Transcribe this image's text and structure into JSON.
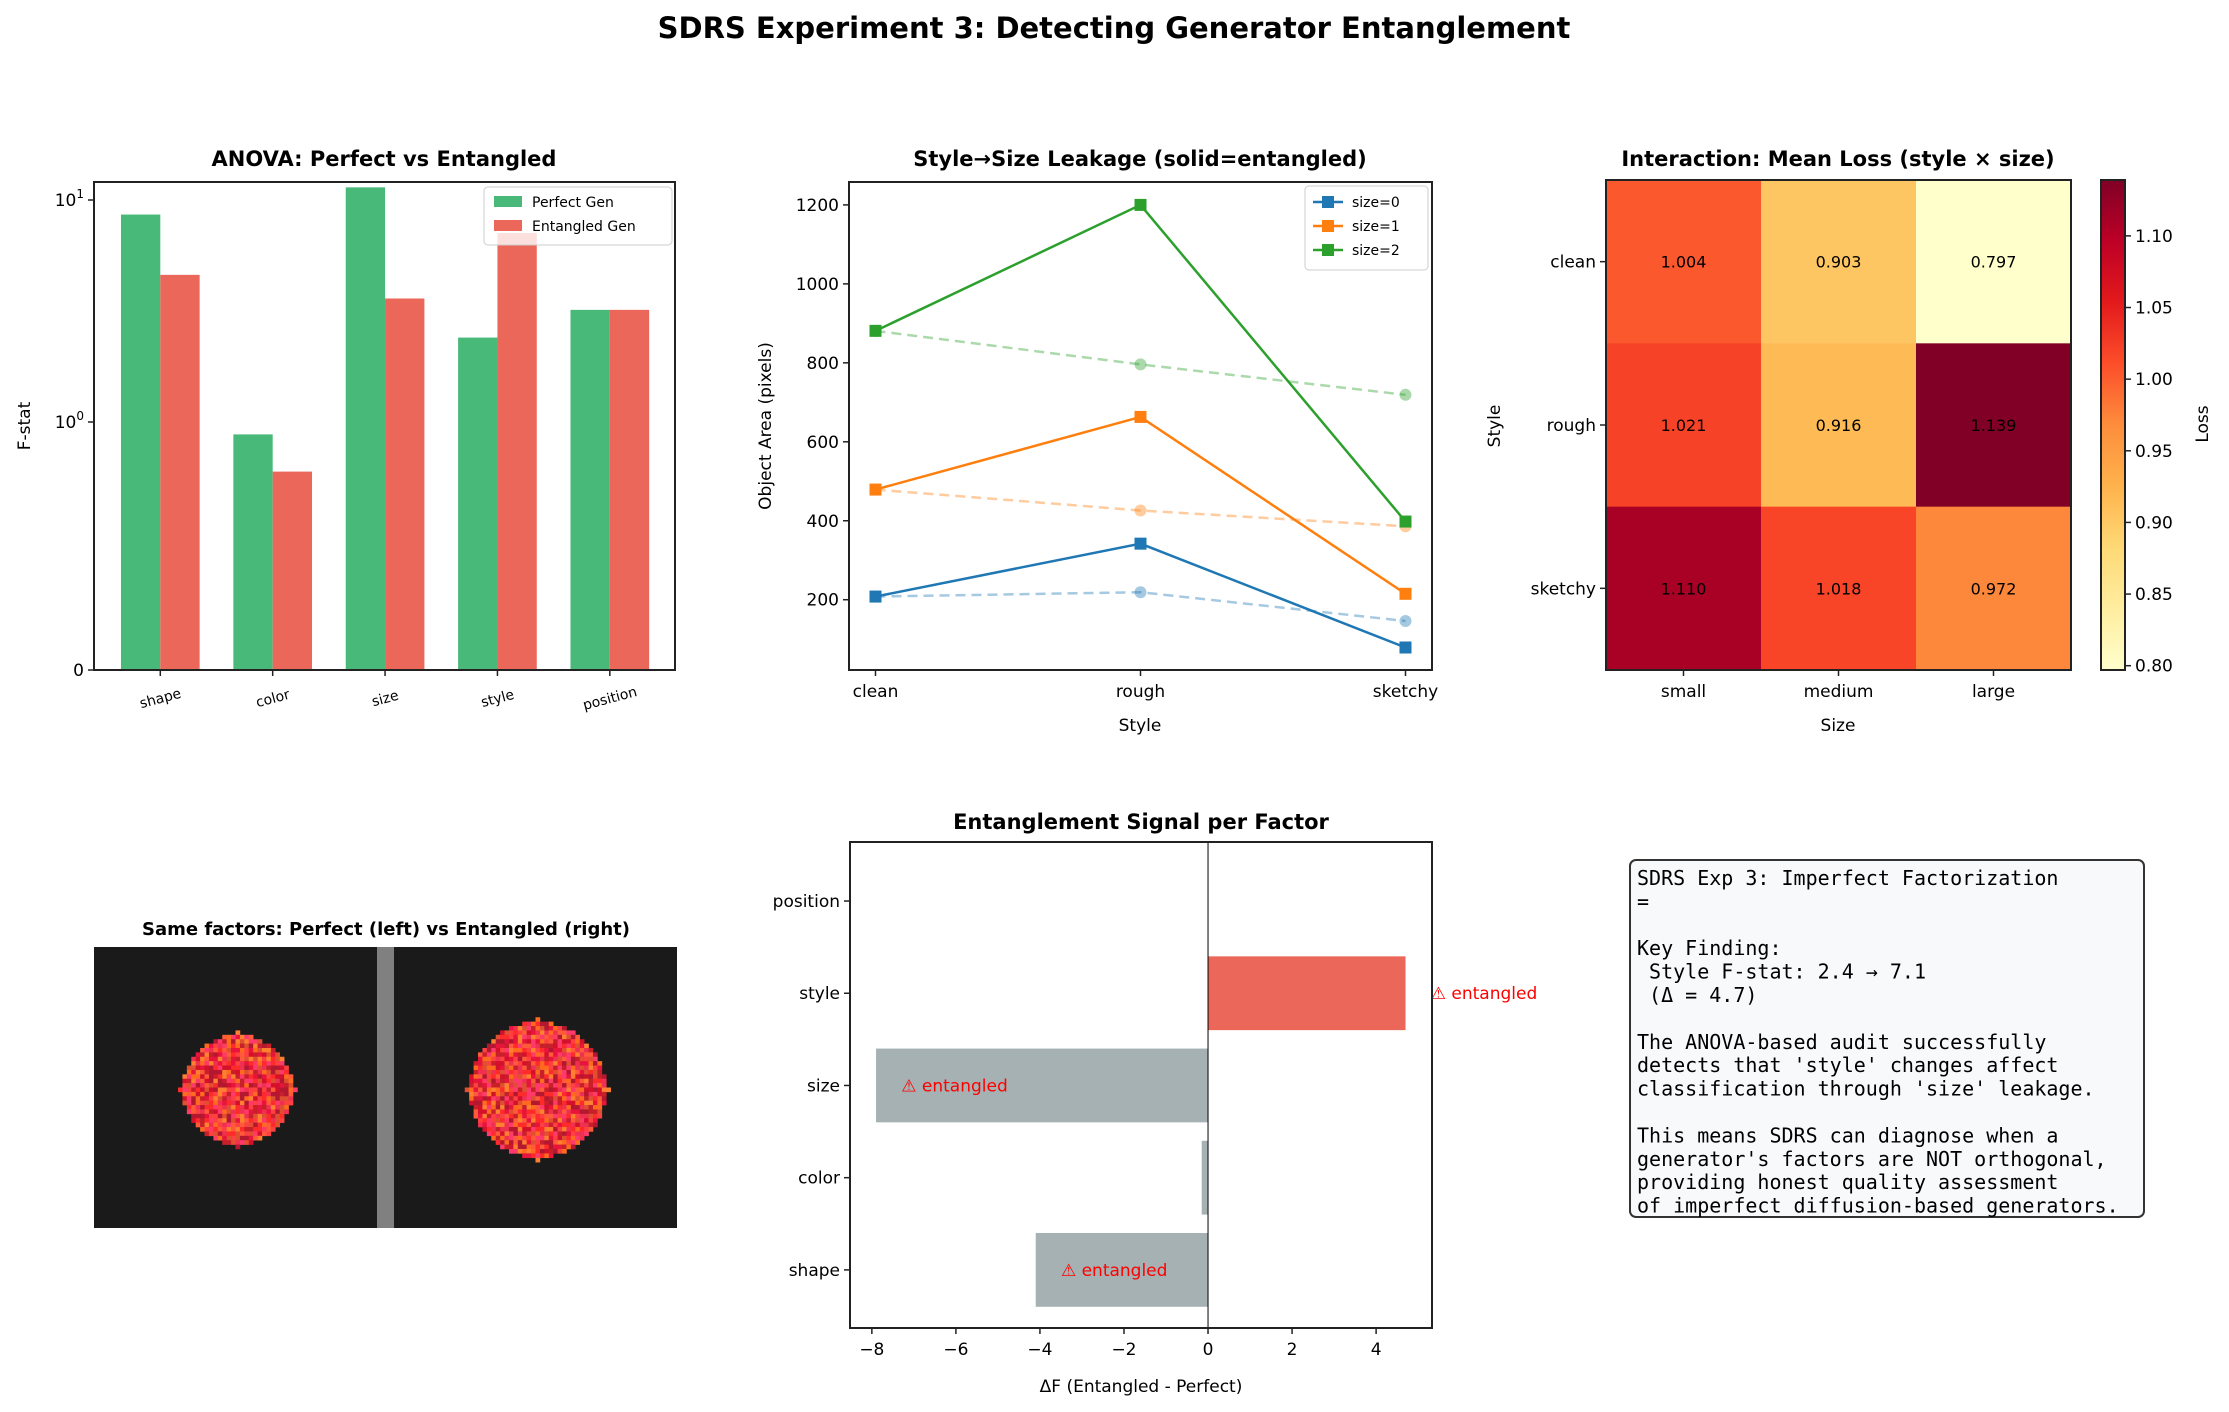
{
  "figure_title": "SDRS Experiment 3: Detecting Generator Entanglement",
  "chart_data": [
    {
      "type": "bar",
      "title": "ANOVA: Perfect vs Entangled",
      "ylabel": "F-stat",
      "xlabel": "",
      "yscale": "symlog",
      "ylim": [
        0,
        12
      ],
      "yticks": [
        {
          "value": 0,
          "label": "0"
        },
        {
          "value": 1,
          "base": "10",
          "exp": "0"
        },
        {
          "value": 10,
          "base": "10",
          "exp": "1"
        }
      ],
      "categories": [
        "shape",
        "color",
        "size",
        "style",
        "position"
      ],
      "series": [
        {
          "name": "Perfect Gen",
          "color": "#48b978",
          "values": [
            8.6,
            0.95,
            11.4,
            2.4,
            3.2
          ]
        },
        {
          "name": "Entangled Gen",
          "color": "#eb675a",
          "values": [
            4.6,
            0.8,
            3.6,
            7.1,
            3.2
          ]
        }
      ],
      "legend": "top-right"
    },
    {
      "type": "line",
      "title": "Style→Size Leakage (solid=entangled)",
      "xlabel": "Style",
      "ylabel": "Object Area (pixels)",
      "categories": [
        "clean",
        "rough",
        "sketchy"
      ],
      "ylim": [
        22,
        1258
      ],
      "yticks": [
        200,
        400,
        600,
        800,
        1000,
        1200
      ],
      "series": [
        {
          "name": "size=0",
          "color": "#1f77b4",
          "style": "solid",
          "marker": "square",
          "values": [
            208,
            342,
            79
          ]
        },
        {
          "name": "size=1",
          "color": "#ff7f0e",
          "style": "solid",
          "marker": "square",
          "values": [
            479,
            663,
            215
          ]
        },
        {
          "name": "size=2",
          "color": "#2ca02c",
          "style": "solid",
          "marker": "square",
          "values": [
            881,
            1200,
            398
          ]
        },
        {
          "color": "#1f77b4",
          "style": "dashed",
          "marker": "circle",
          "values": [
            208,
            219,
            146
          ]
        },
        {
          "color": "#ff7f0e",
          "style": "dashed",
          "marker": "circle",
          "values": [
            479,
            426,
            386
          ]
        },
        {
          "color": "#2ca02c",
          "style": "dashed",
          "marker": "circle",
          "values": [
            881,
            796,
            719
          ]
        }
      ],
      "legend": "top-right"
    },
    {
      "type": "heatmap",
      "title": "Interaction: Mean Loss (style × size)",
      "xlabel": "Size",
      "ylabel": "Style",
      "x_categories": [
        "small",
        "medium",
        "large"
      ],
      "y_categories": [
        "clean",
        "rough",
        "sketchy"
      ],
      "values": [
        [
          1.004,
          0.903,
          0.797
        ],
        [
          1.021,
          0.916,
          1.139
        ],
        [
          1.11,
          1.018,
          0.972
        ]
      ],
      "value_labels": [
        [
          "1.004",
          "0.903",
          "0.797"
        ],
        [
          "1.021",
          "0.916",
          "1.139"
        ],
        [
          "1.110",
          "1.018",
          "0.972"
        ]
      ],
      "colormap": "YlOrRd",
      "colormap_stops": [
        "#ffffcc",
        "#ffeda0",
        "#fed976",
        "#feb24c",
        "#fd8d3c",
        "#fc4e2a",
        "#e31a1c",
        "#bd0026",
        "#800026"
      ],
      "vmin": 0.797,
      "vmax": 1.139,
      "colorbar_label": "Loss",
      "colorbar_ticks": [
        "0.80",
        "0.85",
        "0.90",
        "0.95",
        "1.00",
        "1.05",
        "1.10"
      ]
    },
    {
      "type": "bar",
      "orientation": "horizontal",
      "title": "Entanglement Signal per Factor",
      "xlabel": "ΔF (Entangled - Perfect)",
      "categories": [
        "shape",
        "color",
        "size",
        "style",
        "position"
      ],
      "values": [
        -4.1,
        -0.15,
        -7.9,
        4.7,
        0.0
      ],
      "colors": [
        "#a5b1b2",
        "#a5b1b2",
        "#a5b1b2",
        "#eb675a",
        "#a5b1b2"
      ],
      "annotations": [
        "⚠ entangled",
        "",
        "⚠ entangled",
        "⚠ entangled",
        ""
      ],
      "annotation_color": "#ff0000",
      "xlim": [
        -8.52,
        5.33
      ],
      "xticks": [
        {
          "value": -8,
          "label": "−8"
        },
        {
          "value": -6,
          "label": "−6"
        },
        {
          "value": -4,
          "label": "−4"
        },
        {
          "value": -2,
          "label": "−2"
        },
        {
          "value": 0,
          "label": "0"
        },
        {
          "value": 2,
          "label": "2"
        },
        {
          "value": 4,
          "label": "4"
        }
      ]
    }
  ],
  "image_panel": {
    "title": "Same factors: Perfect (left) vs Entangled (right)",
    "background": "#1a1a1a",
    "divider_color": "#808080"
  },
  "text_box": {
    "lines": [
      "SDRS Exp 3: Imperfect Factorization",
      "=",
      "",
      "Key Finding:",
      "  Style F-stat: 2.4 → 7.1",
      "  (Δ = 4.7)",
      "",
      "The ANOVA-based audit successfully",
      "detects that 'style' changes affect",
      "classification through 'size' leakage.",
      "",
      "This means SDRS can diagnose when a",
      "generator's factors are NOT orthogonal,",
      "providing honest quality assessment",
      "of imperfect diffusion-based generators."
    ]
  }
}
